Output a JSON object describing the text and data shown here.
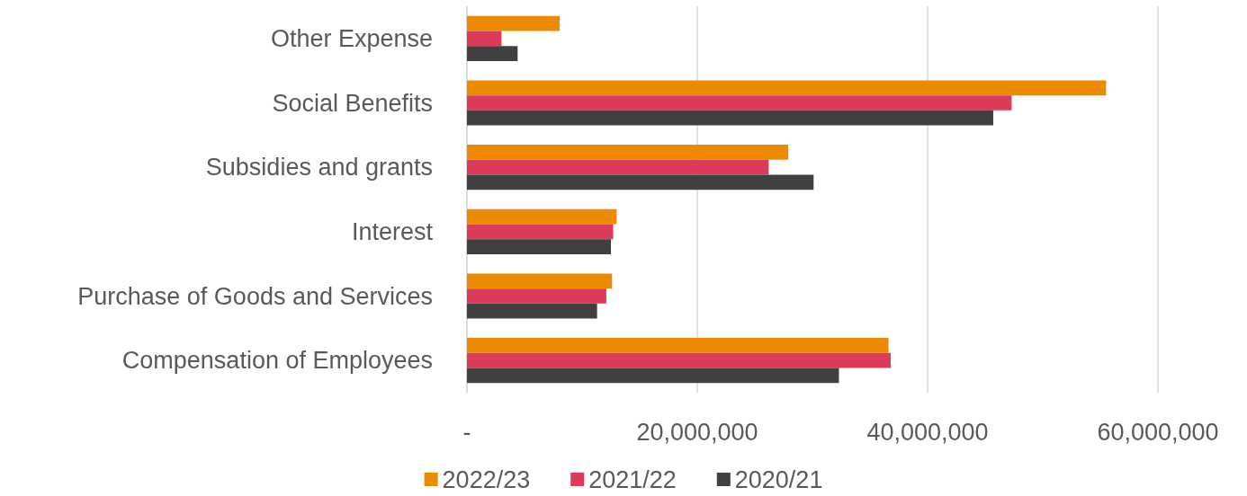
{
  "chart_data": {
    "type": "bar",
    "orientation": "horizontal",
    "categories": [
      "Other Expense",
      "Social Benefits",
      "Subsidies and grants",
      "Interest",
      "Purchase of Goods and Services",
      "Compensation of Employees"
    ],
    "series": [
      {
        "name": "2022/23",
        "color": "#ed8b00",
        "values": [
          8050000,
          55500000,
          27900000,
          13000000,
          12600000,
          36600000
        ]
      },
      {
        "name": "2021/22",
        "color": "#dc3c5a",
        "values": [
          3000000,
          47300000,
          26200000,
          12700000,
          12100000,
          36800000
        ]
      },
      {
        "name": "2020/21",
        "color": "#404040",
        "values": [
          4400000,
          45700000,
          30100000,
          12500000,
          11300000,
          32300000
        ]
      }
    ],
    "xlim": [
      0,
      60000000
    ],
    "xticks": [
      {
        "value": 0,
        "label": "-"
      },
      {
        "value": 20000000,
        "label": "20,000,000"
      },
      {
        "value": 40000000,
        "label": "40,000,000"
      },
      {
        "value": 60000000,
        "label": "60,000,000"
      }
    ],
    "grid": "x",
    "legend": "bottom"
  }
}
